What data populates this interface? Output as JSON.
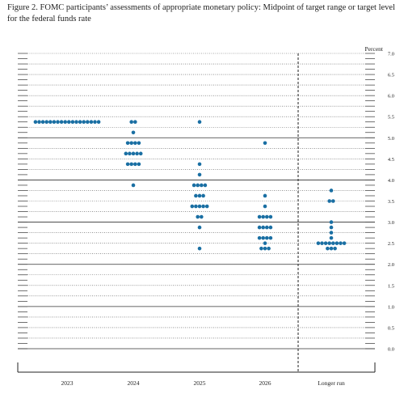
{
  "figure": {
    "title": "Figure 2.  FOMC participants’ assessments of appropriate monetary policy:  Midpoint of target range or target level for the federal funds rate"
  },
  "chart_data": {
    "type": "scatter",
    "style": "dot plot",
    "title": "Figure 2.  FOMC participants’ assessments of appropriate monetary policy:  Midpoint of target range or target level for the federal funds rate",
    "ylabel": "Percent",
    "ylim": [
      0,
      7.0
    ],
    "ytick_step": 0.125,
    "ytick_labels": [
      "0.0",
      "0.5",
      "1.0",
      "1.5",
      "2.0",
      "2.5",
      "3.0",
      "3.5",
      "4.0",
      "4.5",
      "5.0",
      "5.5",
      "6.0",
      "6.5",
      "7.0"
    ],
    "y_label_side": "right",
    "solid_gridlines_at": [
      0,
      1,
      2,
      3,
      4,
      5
    ],
    "dotted_gridlines": "every 0.25",
    "separator": "dashed vertical line between 2026 and Longer run",
    "categories": [
      "2023",
      "2024",
      "2025",
      "2026",
      "Longer run"
    ],
    "dot_color": "#1a6fa3",
    "columns": [
      {
        "category": "2023",
        "points": [
          {
            "y": 5.375,
            "count": 18
          }
        ]
      },
      {
        "category": "2024",
        "points": [
          {
            "y": 5.375,
            "count": 2
          },
          {
            "y": 5.125,
            "count": 1
          },
          {
            "y": 4.875,
            "count": 4
          },
          {
            "y": 4.625,
            "count": 5
          },
          {
            "y": 4.375,
            "count": 4
          },
          {
            "y": 3.875,
            "count": 1
          }
        ]
      },
      {
        "category": "2025",
        "points": [
          {
            "y": 5.375,
            "count": 1
          },
          {
            "y": 4.375,
            "count": 1
          },
          {
            "y": 4.125,
            "count": 1
          },
          {
            "y": 3.875,
            "count": 4
          },
          {
            "y": 3.625,
            "count": 3
          },
          {
            "y": 3.375,
            "count": 5
          },
          {
            "y": 3.125,
            "count": 2
          },
          {
            "y": 2.875,
            "count": 1
          },
          {
            "y": 2.375,
            "count": 1
          }
        ]
      },
      {
        "category": "2026",
        "points": [
          {
            "y": 4.875,
            "count": 1
          },
          {
            "y": 3.625,
            "count": 1
          },
          {
            "y": 3.375,
            "count": 1
          },
          {
            "y": 3.125,
            "count": 4
          },
          {
            "y": 2.875,
            "count": 4
          },
          {
            "y": 2.625,
            "count": 4
          },
          {
            "y": 2.5,
            "count": 1
          },
          {
            "y": 2.375,
            "count": 3
          }
        ]
      },
      {
        "category": "Longer run",
        "points": [
          {
            "y": 3.75,
            "count": 1
          },
          {
            "y": 3.5,
            "count": 2
          },
          {
            "y": 3.0,
            "count": 1
          },
          {
            "y": 2.875,
            "count": 1
          },
          {
            "y": 2.75,
            "count": 1
          },
          {
            "y": 2.625,
            "count": 1
          },
          {
            "y": 2.5,
            "count": 8
          },
          {
            "y": 2.375,
            "count": 3
          }
        ]
      }
    ]
  }
}
